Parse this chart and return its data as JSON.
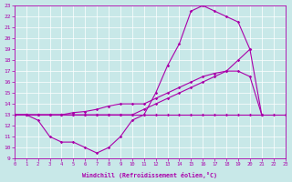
{
  "xlabel": "Windchill (Refroidissement éolien,°C)",
  "xlim": [
    0,
    23
  ],
  "ylim": [
    9,
    23
  ],
  "xticks": [
    0,
    1,
    2,
    3,
    4,
    5,
    6,
    7,
    8,
    9,
    10,
    11,
    12,
    13,
    14,
    15,
    16,
    17,
    18,
    19,
    20,
    21,
    22,
    23
  ],
  "yticks": [
    9,
    10,
    11,
    12,
    13,
    14,
    15,
    16,
    17,
    18,
    19,
    20,
    21,
    22,
    23
  ],
  "background_color": "#c8e8e8",
  "line_color": "#aa00aa",
  "grid_color": "#b0d8d8",
  "lines": [
    {
      "x": [
        0,
        1,
        2,
        3,
        4,
        5,
        6,
        7,
        8,
        9,
        10,
        11,
        12,
        13,
        14,
        15,
        16,
        17,
        18,
        19,
        20,
        21,
        22,
        23
      ],
      "y": [
        13,
        13,
        12.5,
        11,
        10.5,
        10.5,
        10,
        9.5,
        10,
        11,
        12.5,
        13,
        15,
        17.5,
        19.5,
        22.5,
        23,
        22.5,
        22,
        21.5,
        19,
        13,
        null,
        null
      ]
    },
    {
      "x": [
        0,
        1,
        2,
        3,
        4,
        5,
        6,
        7,
        8,
        9,
        10,
        11,
        12,
        13,
        14,
        15,
        16,
        17,
        18,
        19,
        20,
        21,
        22,
        23
      ],
      "y": [
        13,
        13,
        13,
        13,
        13,
        13.2,
        13.3,
        13.5,
        13.8,
        14,
        14,
        14,
        14.5,
        15,
        15.5,
        16,
        16.5,
        16.8,
        17,
        17,
        16.5,
        13,
        null,
        null
      ]
    },
    {
      "x": [
        0,
        1,
        2,
        3,
        4,
        5,
        6,
        7,
        8,
        9,
        10,
        11,
        12,
        13,
        14,
        15,
        16,
        17,
        18,
        19,
        20,
        21,
        22,
        23
      ],
      "y": [
        13,
        13,
        13,
        13,
        13,
        13,
        13,
        13,
        13,
        13,
        13,
        13.5,
        14,
        14.5,
        15,
        15.5,
        16,
        16.5,
        17,
        18,
        19,
        null,
        null,
        null
      ]
    },
    {
      "x": [
        0,
        1,
        2,
        3,
        4,
        5,
        6,
        7,
        8,
        9,
        10,
        11,
        12,
        13,
        14,
        15,
        16,
        17,
        18,
        19,
        20,
        21,
        22,
        23
      ],
      "y": [
        13,
        13,
        13,
        13,
        13,
        13,
        13,
        13,
        13,
        13,
        13,
        13,
        13,
        13,
        13,
        13,
        13,
        13,
        13,
        13,
        13,
        13,
        13,
        13
      ]
    }
  ]
}
